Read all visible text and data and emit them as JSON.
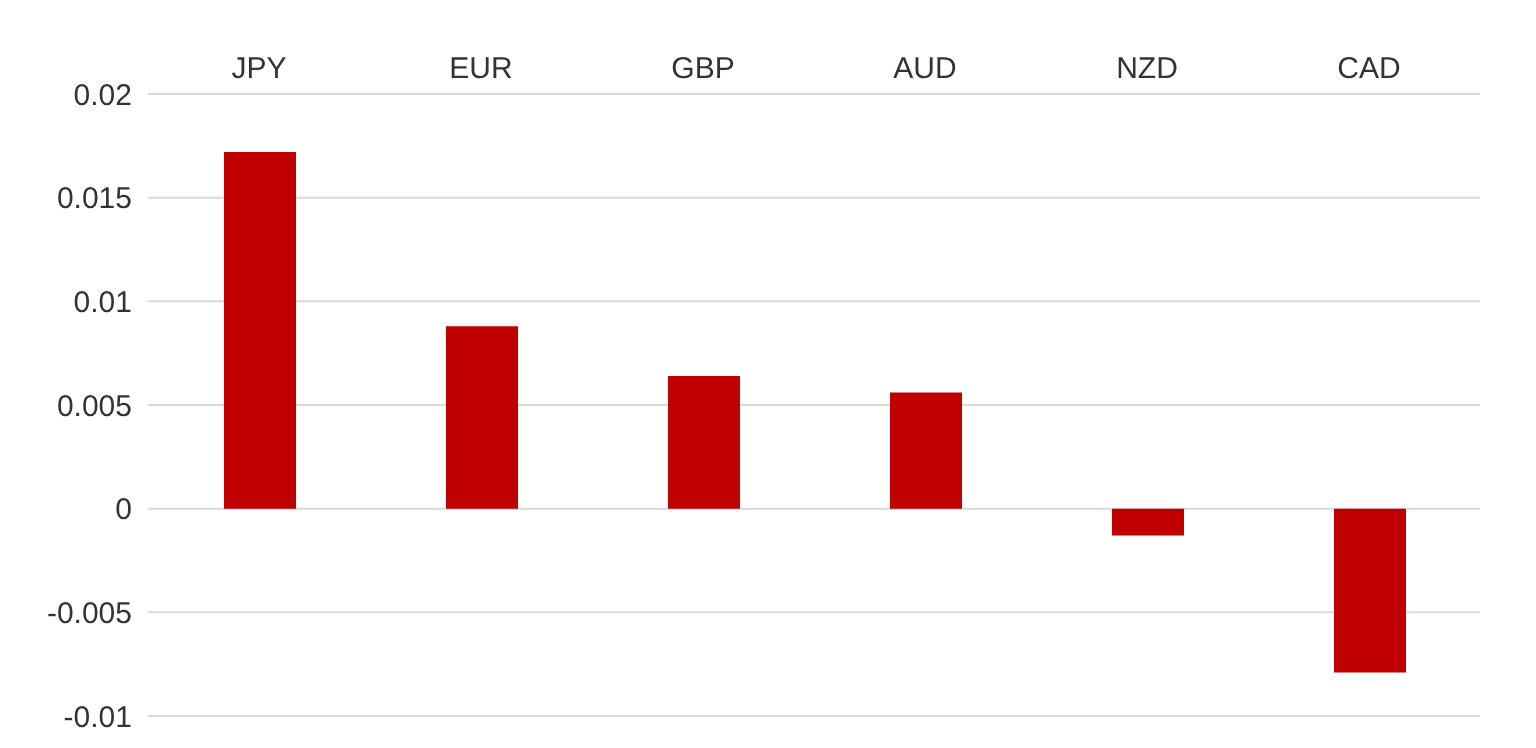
{
  "chart_data": {
    "type": "bar",
    "categories": [
      "JPY",
      "EUR",
      "GBP",
      "AUD",
      "NZD",
      "CAD"
    ],
    "values": [
      0.0172,
      0.0088,
      0.0064,
      0.0056,
      -0.0013,
      -0.0079
    ],
    "color": "#c00000",
    "ylim": [
      -0.01,
      0.02
    ],
    "yticks": [
      -0.01,
      -0.005,
      0,
      0.005,
      0.01,
      0.015,
      0.02
    ],
    "grid": "y"
  }
}
